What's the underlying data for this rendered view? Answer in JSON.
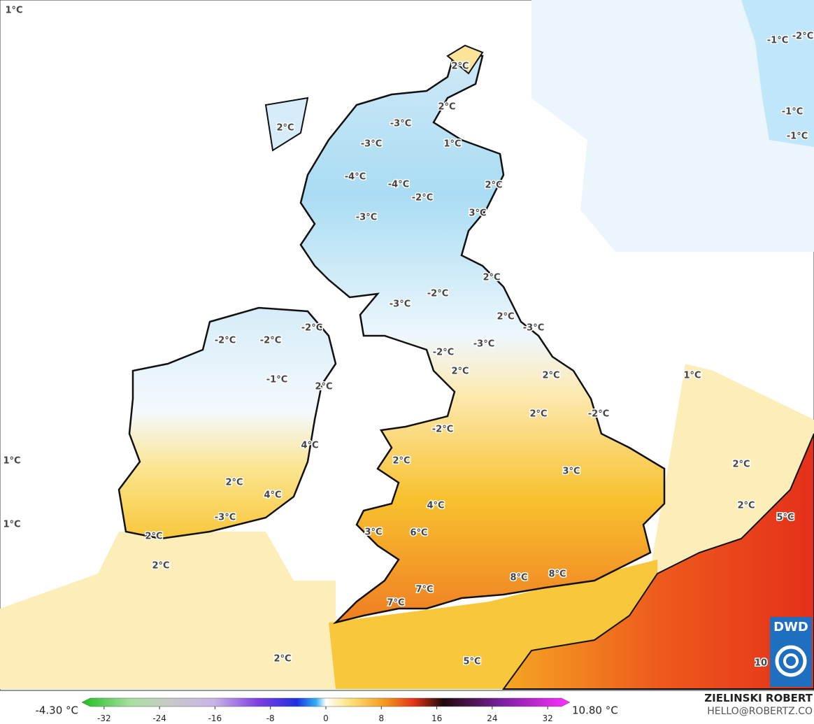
{
  "map": {
    "labels": [
      "1°C",
      "-1°C",
      "-2°C",
      "2°C",
      "2°C",
      "-1°C",
      "-1°C",
      "-3°C",
      "2°C",
      "-3°C",
      "1°C",
      "-4°C",
      "-4°C",
      "2°C",
      "-2°C",
      "3°C",
      "-3°C",
      "2°C",
      "-2°C",
      "-3°C",
      "2°C",
      "-2°C",
      "-3°C",
      "-2°C",
      "-2°C",
      "-3°C",
      "-2°C",
      "2°C",
      "1°C",
      "2°C",
      "-1°C",
      "2°C",
      "2°C",
      "-2°C",
      "-2°C",
      "4°C",
      "2°C",
      "1°C",
      "2°C",
      "3°C",
      "2°C",
      "4°C",
      "4°C",
      "2°C",
      "5°C",
      "-3°C",
      "1°C",
      "3°C",
      "6°C",
      "2°C",
      "2°C",
      "8°C",
      "8°C",
      "7°C",
      "7°C",
      "2°C",
      "5°C",
      "10"
    ],
    "logo": "DWD"
  },
  "colorbar": {
    "min_label": "-4.30 °C",
    "max_label": "10.80 °C",
    "lim": [
      -34,
      34
    ],
    "ticks": [
      -32,
      -24,
      -16,
      -8,
      0,
      8,
      16,
      24,
      32
    ]
  },
  "credit": {
    "name": "ZIELINSKI ROBERT",
    "email": "HELLO@ROBERTZ.CO"
  }
}
